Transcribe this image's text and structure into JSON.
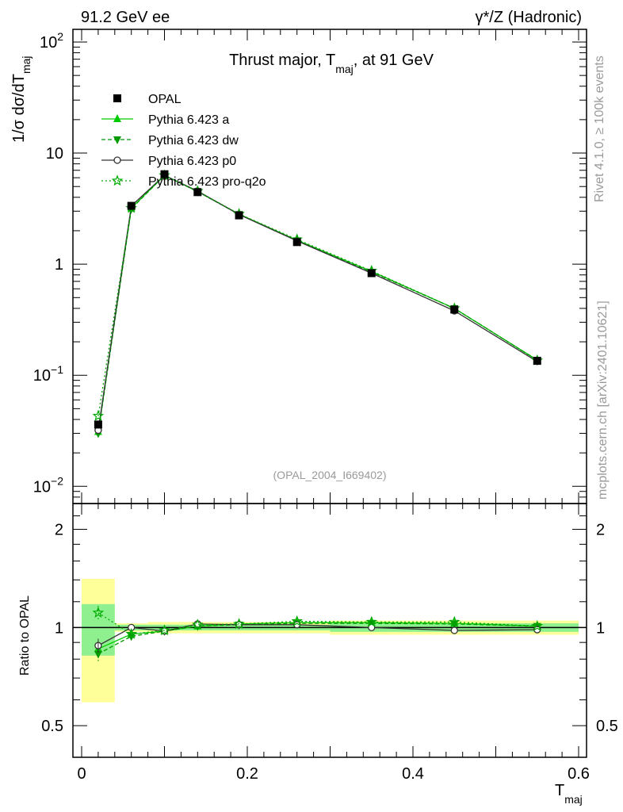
{
  "header": {
    "left": "91.2 GeV ee",
    "right": "γ*/Z (Hadronic)"
  },
  "side": {
    "rivet": "Rivet 4.1.0, ≥ 100k events",
    "mcplots": "mcplots.cern.ch [arXiv:2401.10621]"
  },
  "chart_data": {
    "type": "scatter",
    "title": "Thrust major, T",
    "title_sub": "maj",
    "title_tail": ", at 91 GeV",
    "reference": "(OPAL_2004_I669402)",
    "xlabel": "T",
    "xlabel_sub": "maj",
    "ylabel_prefix": "1/σ  dσ/dT",
    "ylabel_sub": "maj",
    "ratio_ylabel": "Ratio to OPAL",
    "xlim": [
      -0.02,
      0.61
    ],
    "ylim": [
      0.007,
      130
    ],
    "ratio_ylim": [
      0.4,
      2.4
    ],
    "x_ticks": [
      {
        "value": 0,
        "label": "0"
      },
      {
        "value": 0.2,
        "label": "0.2"
      },
      {
        "value": 0.4,
        "label": "0.4"
      },
      {
        "value": 0.6,
        "label": "0.6"
      }
    ],
    "y_ticks": [
      {
        "value": 0.01,
        "base": "10",
        "exp": "−2"
      },
      {
        "value": 0.1,
        "base": "10",
        "exp": "−1"
      },
      {
        "value": 1,
        "base": "1",
        "exp": ""
      },
      {
        "value": 10,
        "base": "10",
        "exp": ""
      },
      {
        "value": 100,
        "base": "10",
        "exp": "2"
      }
    ],
    "ratio_ticks": [
      {
        "value": 0.5,
        "label": "0.5"
      },
      {
        "value": 1,
        "label": "1"
      },
      {
        "value": 2,
        "label": "2"
      }
    ],
    "bins": [
      {
        "lo": 0.0,
        "hi": 0.04,
        "x": 0.02
      },
      {
        "lo": 0.04,
        "hi": 0.08,
        "x": 0.06
      },
      {
        "lo": 0.08,
        "hi": 0.12,
        "x": 0.1
      },
      {
        "lo": 0.12,
        "hi": 0.16,
        "x": 0.14
      },
      {
        "lo": 0.16,
        "hi": 0.22,
        "x": 0.19
      },
      {
        "lo": 0.22,
        "hi": 0.3,
        "x": 0.26
      },
      {
        "lo": 0.3,
        "hi": 0.4,
        "x": 0.35
      },
      {
        "lo": 0.4,
        "hi": 0.5,
        "x": 0.45
      },
      {
        "lo": 0.5,
        "hi": 0.6,
        "x": 0.55
      }
    ],
    "data": {
      "name": "OPAL",
      "values": [
        0.036,
        3.35,
        6.45,
        4.45,
        2.75,
        1.58,
        0.83,
        0.39,
        0.135
      ],
      "band_inner": [
        0.18,
        0.02,
        0.02,
        0.02,
        0.02,
        0.02,
        0.03,
        0.03,
        0.03
      ],
      "band_outer": [
        0.41,
        0.03,
        0.04,
        0.04,
        0.04,
        0.04,
        0.05,
        0.05,
        0.05
      ]
    },
    "series": [
      {
        "name": "Pythia 6.423 a",
        "color": "#00cc00",
        "dash": "",
        "marker": "triangle-up",
        "values": [
          0.031,
          3.2,
          6.3,
          4.5,
          2.82,
          1.64,
          0.86,
          0.4,
          0.137
        ],
        "ratio": [
          0.86,
          0.955,
          0.975,
          1.01,
          1.025,
          1.035,
          1.035,
          1.03,
          1.01
        ]
      },
      {
        "name": "Pythia 6.423 dw",
        "color": "#009900",
        "dash": "5,3",
        "marker": "triangle-down",
        "values": [
          0.03,
          3.15,
          6.3,
          4.5,
          2.81,
          1.63,
          0.85,
          0.4,
          0.137
        ],
        "ratio": [
          0.83,
          0.94,
          0.975,
          1.01,
          1.02,
          1.03,
          1.03,
          1.025,
          1.01
        ]
      },
      {
        "name": "Pythia 6.423 p0",
        "color": "#333333",
        "dash": "",
        "marker": "circle",
        "values": [
          0.032,
          3.35,
          6.3,
          4.55,
          2.8,
          1.62,
          0.83,
          0.38,
          0.133
        ],
        "ratio": [
          0.88,
          1.0,
          0.975,
          1.025,
          1.02,
          1.02,
          1.0,
          0.98,
          0.985
        ]
      },
      {
        "name": "Pythia 6.423 pro-q2o",
        "color": "#00aa00",
        "dash": "2,3",
        "marker": "star",
        "values": [
          0.043,
          3.2,
          6.3,
          4.55,
          2.83,
          1.67,
          0.87,
          0.4,
          0.136
        ],
        "ratio": [
          1.11,
          0.955,
          0.98,
          1.02,
          1.025,
          1.045,
          1.04,
          1.04,
          1.01
        ]
      }
    ],
    "colors": {
      "band_inner": "#8ef08e",
      "band_outer": "#ffff99",
      "data": "#000000"
    }
  }
}
